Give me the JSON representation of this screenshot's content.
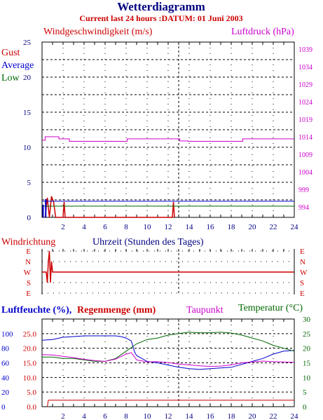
{
  "title": "Wetterdiagramm",
  "subtitle": "Current last 24 hours :DATUM: 01 Juni 2003",
  "colors": {
    "navy": "#000080",
    "red": "#cc0000",
    "magenta": "#cc00cc",
    "green": "#006600",
    "blue": "#0000cc",
    "black": "#000000"
  },
  "chart_data": [
    {
      "type": "line",
      "title": "",
      "left_axis_label": "Windgeschwindigkeit (m/s)",
      "right_axis_label": "Luftdruck (hPa)",
      "legend": [
        "Gust",
        "Average",
        "Low"
      ],
      "x_ticks": [
        "2",
        "4",
        "6",
        "8",
        "10",
        "12",
        "14",
        "16",
        "18",
        "20",
        "22",
        "24"
      ],
      "xlim": [
        0,
        24
      ],
      "y_left_ticks": [
        "0",
        "5",
        "10",
        "15",
        "20",
        "25"
      ],
      "ylim_left": [
        0,
        25
      ],
      "y_right_ticks": [
        "994",
        "999",
        "1004",
        "1009",
        "1014",
        "1019",
        "1024",
        "1029",
        "1034",
        "1039"
      ],
      "series": [
        {
          "name": "Luftdruck",
          "axis": "right",
          "color": "#cc00cc",
          "x": [
            0,
            0.3,
            1.5,
            1.6,
            2.5,
            2.6,
            8.0,
            8.1,
            13.0,
            13.1,
            13.8,
            13.9,
            19.0,
            19.1,
            24.0
          ],
          "y": [
            1013,
            1014,
            1014,
            1013.4,
            1013.4,
            1012.7,
            1012.7,
            1013.4,
            1013.4,
            1012.8,
            1012.8,
            1012.7,
            1012.7,
            1013.4,
            1013.4
          ]
        },
        {
          "name": "Gust",
          "axis": "left",
          "color": "#cc0000",
          "x": [
            0.3,
            0.5,
            0.7,
            0.9,
            1.1,
            1.3,
            1.6,
            2.0,
            2.1,
            2.2,
            12.4,
            12.5,
            12.6
          ],
          "y": [
            0,
            2.8,
            0,
            3.0,
            2.2,
            0,
            0,
            0,
            2.2,
            0,
            0,
            2.2,
            0
          ]
        },
        {
          "name": "Average",
          "axis": "left",
          "color": "#0000cc",
          "x": [
            0,
            24
          ],
          "y": [
            2.3,
            2.3
          ]
        },
        {
          "name": "Low",
          "axis": "left",
          "color": "#006600",
          "x": [
            0,
            24
          ],
          "y": [
            1.6,
            1.6
          ]
        }
      ]
    },
    {
      "type": "line",
      "title": "Windrichtung",
      "xlabel": "Uhrzeit (Stunden des Tages)",
      "y_ticks": [
        "E",
        "N",
        "W",
        "S",
        "E"
      ],
      "xlim": [
        0,
        24
      ],
      "series": [
        {
          "name": "Windrichtung",
          "color": "#cc0000",
          "x": [
            0,
            0.4,
            0.5,
            0.6,
            0.7,
            0.8,
            0.9,
            1.0,
            24.0
          ],
          "y": [
            "W",
            "W",
            "S",
            "N",
            "E",
            "S",
            "N",
            "W",
            "W"
          ]
        }
      ]
    },
    {
      "type": "line",
      "title": "",
      "labels": [
        "Luftfeuchte (%),",
        "Regenmenge (mm)",
        "Taupunkt",
        "Temperatur (°C)"
      ],
      "x_ticks": [
        "2",
        "4",
        "6",
        "8",
        "10",
        "12",
        "14",
        "16",
        "18",
        "20",
        "22",
        "24"
      ],
      "xlim": [
        0,
        24
      ],
      "y_left_humidity_ticks": [
        "0",
        "20",
        "40",
        "60",
        "80",
        "100"
      ],
      "y_left_rain_ticks": [
        "0.0",
        "5.0",
        "10.0",
        "15.0",
        "20.0",
        "25.0"
      ],
      "y_right_temperature_ticks": [
        "0",
        "5",
        "10",
        "15",
        "20",
        "25",
        "30"
      ],
      "series": [
        {
          "name": "Luftfeuchte (%)",
          "color": "#0000cc",
          "x": [
            0,
            1,
            2,
            3,
            4,
            5,
            6,
            7,
            7.5,
            8,
            8.5,
            8.8,
            9,
            10,
            11,
            12,
            13,
            14,
            15,
            16,
            17,
            18,
            19,
            20,
            21,
            22,
            23,
            24
          ],
          "y": [
            91,
            92,
            95,
            96,
            97,
            97,
            97,
            97,
            96,
            94,
            90,
            75,
            70,
            62,
            60,
            57,
            54,
            52,
            51,
            52,
            53,
            54,
            58,
            62,
            66,
            72,
            76,
            77
          ]
        },
        {
          "name": "Temperatur",
          "color": "#006600",
          "x": [
            0,
            1,
            2,
            3,
            4,
            5,
            6,
            7,
            8,
            9,
            10,
            11,
            12,
            13,
            14,
            15,
            16,
            17,
            18,
            19,
            20,
            21,
            22,
            23,
            24
          ],
          "y": [
            17,
            17,
            16.5,
            16.5,
            16,
            15.5,
            15.5,
            16.5,
            19,
            21.5,
            23,
            23.5,
            24.5,
            25,
            25.5,
            25.3,
            25.3,
            25.5,
            25.2,
            24.5,
            23.5,
            22.5,
            21,
            20,
            19
          ]
        },
        {
          "name": "Taupunkt",
          "color": "#cc00cc",
          "x": [
            0,
            1,
            2,
            3,
            4,
            5,
            6,
            7,
            8,
            8.5,
            9,
            10,
            11,
            12,
            13,
            14,
            15,
            16,
            17,
            18,
            19,
            20,
            21,
            22,
            23,
            24
          ],
          "y": [
            17.8,
            17.7,
            17.2,
            16.8,
            16.2,
            15.8,
            15.5,
            16.3,
            18.0,
            18.5,
            16.0,
            15.3,
            15.4,
            15.1,
            14.6,
            14.3,
            14.0,
            13.8,
            13.9,
            14.3,
            15.0,
            15.3,
            15.6,
            15.4,
            15.3,
            15.2
          ]
        },
        {
          "name": "Regenmenge (mm)",
          "color": "#cc0000",
          "x": [
            0.5,
            0.6,
            24
          ],
          "y": [
            0,
            2.2,
            2.2
          ]
        }
      ]
    }
  ]
}
